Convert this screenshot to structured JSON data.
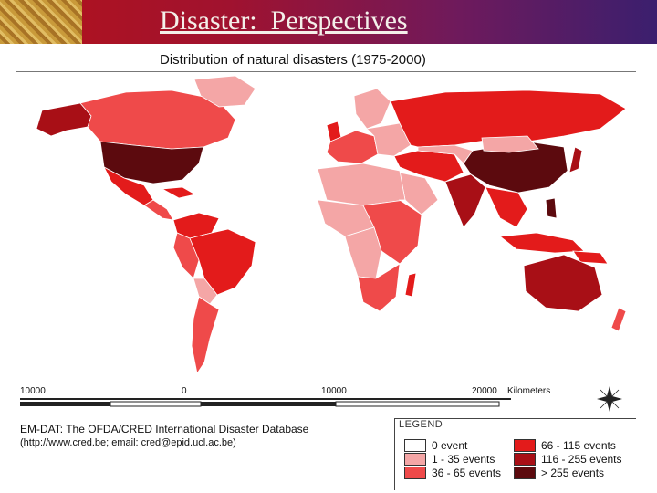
{
  "header": {
    "title": "Disaster:  Perspectives",
    "logo_icon": "grain-texture-icon"
  },
  "map": {
    "title": "Distribution of natural disasters (1975-2000)",
    "ocean_color": "#ffffff",
    "scale_labels": [
      "10000",
      "0",
      "10000",
      "20000",
      "Kilometers"
    ],
    "compass_icon": "compass-rose-icon"
  },
  "source": {
    "line1": "EM-DAT: The OFDA/CRED International Disaster Database",
    "line2": "(http://www.cred.be; email: cred@epid.ucl.ac.be)"
  },
  "legend": {
    "title": "LEGEND",
    "items": [
      {
        "label": "0 event",
        "color": "#ffffff"
      },
      {
        "label": "1 - 35 events",
        "color": "#f4a6a6"
      },
      {
        "label": "36 - 65 events",
        "color": "#ef4a4a"
      },
      {
        "label": "66 - 115 events",
        "color": "#e31b1b"
      },
      {
        "label": "116 - 255 events",
        "color": "#a80f16"
      },
      {
        "label": "> 255 events",
        "color": "#5c0a0e"
      }
    ]
  }
}
